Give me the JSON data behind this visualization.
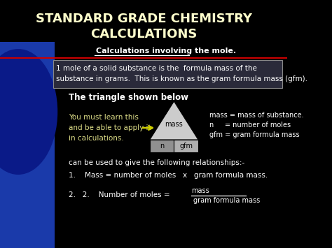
{
  "title_line1": "STANDARD GRADE CHEMISTRY",
  "title_line2": "CALCULATIONS",
  "subtitle": "Calculations involving the mole.",
  "box_text_line1": "1 mole of a solid substance is the  formula mass of the",
  "box_text_line2": "substance in grams.  This is known as the gram formula mass (gfm).",
  "triangle_label": "The triangle shown below",
  "left_text_line1": "You must learn this",
  "left_text_line2": "and be able to apply it",
  "left_text_line3": "in calculations.",
  "triangle_top_label": "mass",
  "triangle_bottom_left": "n",
  "triangle_bottom_right": "gfm",
  "right_text_line1": "mass = mass of substance.",
  "right_text_line2": "n     = number of moles",
  "right_text_line3": "gfm = gram formula mass",
  "relations_header": "can be used to give the following relationships:-",
  "relation1": "1.    Mass = number of moles   x   gram formula mass.",
  "relation2_prefix": "2.   2.    Number of moles =",
  "relation2_numerator": "mass",
  "relation2_denominator": "gram formula mass",
  "bg_color": "#000000",
  "title_color": "#ffffcc",
  "subtitle_color": "#ffffff",
  "box_bg_color": "#2a2a3a",
  "box_text_color": "#ffffff",
  "body_text_color": "#ffffff",
  "triangle_fill_top": "#c8c8c8",
  "arrow_color": "#cccc00",
  "blue_bg_color": "#1a3aaa",
  "red_line_color": "#cc0000"
}
